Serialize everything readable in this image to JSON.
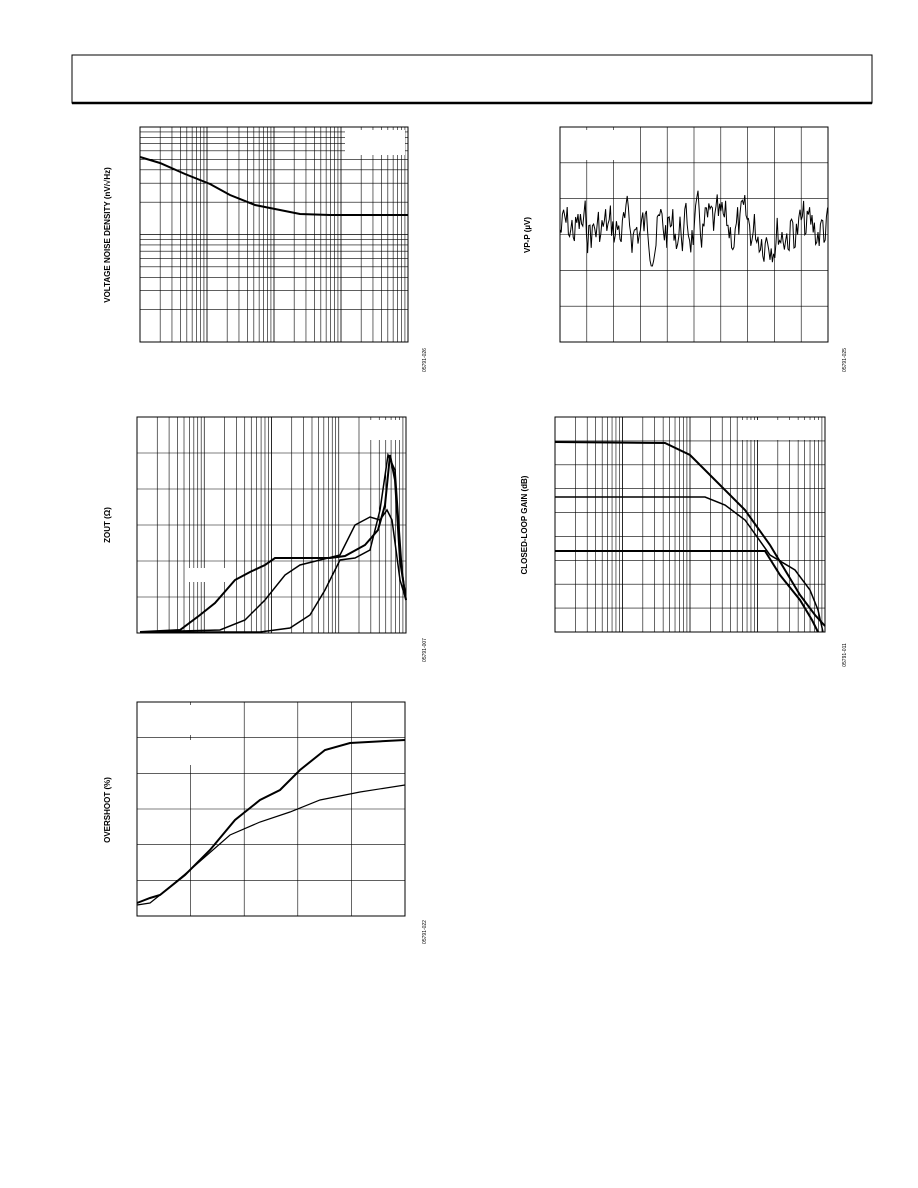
{
  "figures": [
    {
      "y_axis_label": "VOLTAGE NOISE DENSITY (nV/√Hz)",
      "figure_id": "05791-026"
    },
    {
      "y_axis_label": "VP-P (µV)",
      "figure_id": "05791-025"
    },
    {
      "y_axis_label": "ZOUT (Ω)",
      "figure_id": "05791-007"
    },
    {
      "y_axis_label": "CLOSED-LOOP GAIN (dB)",
      "figure_id": "05791-011"
    },
    {
      "y_axis_label": "OVERSHOOT (%)",
      "figure_id": "05791-022"
    }
  ]
}
